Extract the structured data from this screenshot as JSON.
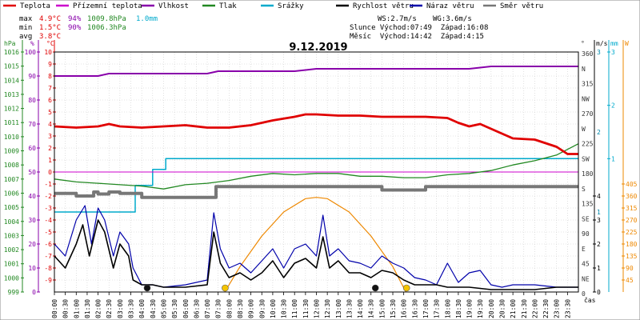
{
  "chart_data": {
    "type": "line",
    "title": "9.12.2019",
    "legend": [
      {
        "label": "Teplota",
        "color": "#e00000"
      },
      {
        "label": "Přízemní teplota",
        "color": "#cc00cc"
      },
      {
        "label": "Vlhkost",
        "color": "#8800aa"
      },
      {
        "label": "Tlak",
        "color": "#228822"
      },
      {
        "label": "Srážky",
        "color": "#00aacc"
      },
      {
        "label": "Rychlost větru",
        "color": "#000000"
      },
      {
        "label": "Náraz větru",
        "color": "#0000aa"
      },
      {
        "label": "Směr větru",
        "color": "#777777"
      }
    ],
    "stats": {
      "max_label": "max",
      "max_temp": "4.9°C",
      "max_hum": "94%",
      "max_press": "1009.8hPa",
      "max_rain": "1.0mm",
      "min_label": "min",
      "min_temp": "1.5°C",
      "min_hum": "90%",
      "min_press": "1006.3hPa",
      "avg_label": "avg",
      "avg_temp": "3.8°C"
    },
    "info": {
      "ws": "WS:2.7m/s",
      "wg": "WG:3.6m/s",
      "sun": "Slunce Východ:07:49  Západ:16:08",
      "moon": "Měsíc  Východ:14:42  Západ:4:15"
    },
    "axis_units": {
      "hpa": "hPa",
      "pct": "%",
      "degc": "°C",
      "deg": "°",
      "ms": "m/s",
      "mm": "mm",
      "w": "W",
      "time": "čas"
    },
    "y_axes": {
      "hpa": {
        "ticks": [
          1016,
          1015,
          1014,
          1013,
          1012,
          1011,
          1010,
          1009,
          1008,
          1007,
          1006,
          1005,
          1004,
          1003,
          1002,
          1001,
          1000,
          999
        ],
        "range": [
          999,
          1016
        ]
      },
      "pct": {
        "ticks": [
          100,
          90,
          80,
          70,
          60,
          50,
          40,
          30,
          20,
          10,
          0
        ],
        "range": [
          0,
          100
        ]
      },
      "temp": {
        "ticks": [
          10,
          9,
          8,
          7,
          6,
          5,
          4,
          3,
          2,
          1,
          0,
          -1,
          -2,
          -3,
          -4,
          -5,
          -6,
          -7,
          -8,
          -9
        ],
        "range": [
          -10,
          10
        ]
      },
      "dir": {
        "ticks": [
          "360",
          "N",
          "315",
          "NW",
          "270",
          "W",
          "225",
          "SW",
          "180",
          "S",
          "135",
          "SE",
          "90",
          "E",
          "45",
          "NE",
          "0"
        ]
      },
      "ms_upper": {
        "ticks": [
          3,
          2,
          1
        ],
        "range": [
          0,
          3
        ]
      },
      "ms_lower": {
        "ticks": [
          4,
          3,
          2,
          1,
          0
        ],
        "range": [
          0,
          4
        ]
      },
      "mm": {
        "ticks": [
          3,
          2,
          1
        ],
        "range": [
          0,
          3
        ]
      },
      "w": {
        "ticks": [
          405,
          360,
          315,
          270,
          225,
          180,
          135,
          90,
          45
        ],
        "range": [
          0,
          405
        ]
      }
    },
    "x_ticks": [
      "00:00",
      "00:30",
      "01:00",
      "01:30",
      "02:00",
      "02:30",
      "03:00",
      "03:30",
      "04:00",
      "04:30",
      "05:00",
      "05:30",
      "06:00",
      "06:30",
      "07:00",
      "07:30",
      "08:00",
      "08:30",
      "09:00",
      "09:30",
      "10:00",
      "10:30",
      "11:00",
      "11:30",
      "12:00",
      "12:30",
      "13:00",
      "13:30",
      "14:00",
      "14:30",
      "15:00",
      "15:30",
      "16:00",
      "16:30",
      "17:00",
      "17:30",
      "18:00",
      "18:30",
      "19:00",
      "19:30",
      "20:00",
      "20:30",
      "21:00",
      "21:30",
      "22:00",
      "22:30",
      "23:00",
      "23:30"
    ],
    "x_range_hours": [
      0,
      24
    ],
    "series": [
      {
        "name": "Teplota",
        "color": "#e00000",
        "axis": "temp",
        "x": [
          0,
          1,
          2,
          2.5,
          3,
          4,
          5,
          6,
          7,
          8,
          9,
          9.5,
          10,
          11,
          11.5,
          12,
          13,
          13.5,
          14,
          15,
          16,
          17,
          18,
          18.5,
          19,
          19.5,
          20,
          21,
          22,
          23,
          23.5,
          24
        ],
        "y": [
          3.8,
          3.7,
          3.8,
          4.0,
          3.8,
          3.7,
          3.8,
          3.9,
          3.7,
          3.7,
          3.9,
          4.1,
          4.3,
          4.6,
          4.8,
          4.8,
          4.7,
          4.7,
          4.7,
          4.6,
          4.6,
          4.6,
          4.5,
          4.1,
          3.8,
          4.0,
          3.6,
          2.8,
          2.7,
          2.1,
          1.5,
          1.5
        ]
      },
      {
        "name": "Přízemní teplota",
        "color": "#cc00cc",
        "axis": "pct",
        "x": [
          0,
          24
        ],
        "y": [
          50,
          50
        ]
      },
      {
        "name": "Vlhkost",
        "color": "#8800aa",
        "axis": "pct",
        "x": [
          0,
          2,
          2.5,
          4,
          5,
          7,
          7.5,
          11,
          12,
          14,
          15,
          17,
          18,
          19,
          20,
          24
        ],
        "y": [
          90,
          90,
          91,
          91,
          91,
          91,
          92,
          92,
          93,
          93,
          93,
          93,
          93,
          93,
          94,
          94
        ]
      },
      {
        "name": "Tlak",
        "color": "#228822",
        "axis": "hpa",
        "x": [
          0,
          1,
          2,
          3,
          4,
          5,
          6,
          7,
          8,
          9,
          10,
          11,
          12,
          13,
          14,
          15,
          16,
          17,
          18,
          19,
          20,
          21,
          22,
          23,
          24
        ],
        "y": [
          1007.0,
          1006.8,
          1006.7,
          1006.6,
          1006.5,
          1006.3,
          1006.6,
          1006.7,
          1006.9,
          1007.2,
          1007.4,
          1007.3,
          1007.4,
          1007.4,
          1007.2,
          1007.2,
          1007.1,
          1007.1,
          1007.3,
          1007.4,
          1007.6,
          1008.0,
          1008.3,
          1008.7,
          1009.5
        ]
      },
      {
        "name": "Srážky",
        "color": "#00aacc",
        "axis": "mm",
        "x": [
          0,
          3.5,
          3.7,
          4.4,
          4.5,
          5.0,
          5.1,
          24
        ],
        "y": [
          0,
          0,
          0.5,
          0.5,
          0.8,
          0.8,
          1.0,
          1.0
        ]
      },
      {
        "name": "Směr větru",
        "color": "#777777",
        "axis": "dir_deg",
        "x": [
          0,
          1,
          1.8,
          2,
          2.5,
          3,
          4,
          6,
          7.3,
          7.4,
          13,
          15,
          17,
          20,
          24
        ],
        "y": [
          148,
          144,
          150,
          147,
          150,
          148,
          142,
          142,
          142,
          158,
          158,
          153,
          158,
          158,
          158
        ]
      },
      {
        "name": "Rychlost větru",
        "color": "#000000",
        "axis": "ms_lower",
        "x": [
          0,
          0.5,
          1,
          1.3,
          1.6,
          2,
          2.3,
          2.7,
          3,
          3.4,
          3.6,
          4,
          4.5,
          5,
          6,
          7,
          7.3,
          7.6,
          8,
          8.5,
          9,
          9.5,
          10,
          10.5,
          11,
          11.5,
          12,
          12.3,
          12.6,
          13,
          13.5,
          14,
          14.5,
          15,
          15.5,
          16,
          16.5,
          17,
          17.5,
          18,
          19,
          20,
          21,
          22,
          23,
          24
        ],
        "y": [
          1.5,
          1.0,
          2.0,
          2.8,
          1.5,
          3.0,
          2.5,
          1.0,
          2.0,
          1.5,
          0.5,
          0.3,
          0.3,
          0.2,
          0.2,
          0.3,
          2.5,
          1.2,
          0.6,
          0.8,
          0.5,
          0.8,
          1.3,
          0.6,
          1.2,
          1.4,
          1.0,
          2.3,
          1.0,
          1.3,
          0.8,
          0.8,
          0.6,
          0.9,
          0.8,
          0.5,
          0.3,
          0.3,
          0.3,
          0.2,
          0.2,
          0.1,
          0.1,
          0.1,
          0.2,
          0.2
        ]
      },
      {
        "name": "Náraz větru",
        "color": "#0000aa",
        "axis": "ms_lower",
        "x": [
          0,
          0.5,
          1,
          1.4,
          1.7,
          2,
          2.3,
          2.7,
          3,
          3.4,
          3.6,
          4,
          4.5,
          5,
          6,
          7,
          7.3,
          7.6,
          8,
          8.5,
          9,
          9.5,
          10,
          10.5,
          11,
          11.5,
          12,
          12.3,
          12.6,
          13,
          13.5,
          14,
          14.5,
          15,
          15.5,
          16,
          16.5,
          17,
          17.5,
          18,
          18.5,
          19,
          19.5,
          20,
          20.5,
          21,
          22,
          23,
          24
        ],
        "y": [
          2.0,
          1.5,
          3.0,
          3.6,
          2.0,
          3.5,
          3.0,
          1.5,
          2.5,
          2.0,
          1.0,
          0.3,
          0.3,
          0.2,
          0.3,
          0.5,
          3.3,
          1.8,
          1.0,
          1.2,
          0.8,
          1.3,
          1.8,
          1.0,
          1.8,
          2.0,
          1.5,
          3.2,
          1.5,
          1.8,
          1.3,
          1.2,
          1.0,
          1.5,
          1.2,
          1.0,
          0.6,
          0.5,
          0.3,
          1.2,
          0.4,
          0.8,
          0.9,
          0.3,
          0.2,
          0.3,
          0.3,
          0.2,
          0.2
        ]
      },
      {
        "name": "Sluneční záření",
        "color": "#ee8800",
        "axis": "w",
        "x": [
          7.8,
          8.5,
          9.5,
          10.5,
          11.5,
          12.0,
          12.5,
          13.5,
          14.5,
          15.5,
          16.1
        ],
        "y": [
          0,
          95,
          210,
          300,
          350,
          355,
          350,
          300,
          210,
          95,
          0
        ]
      }
    ],
    "markers": [
      {
        "label": "sunrise",
        "x": 7.82,
        "color": "#f5c400"
      },
      {
        "label": "sunset",
        "x": 16.13,
        "color": "#f5c400"
      },
      {
        "label": "moonset",
        "x": 4.25,
        "color": "#111111"
      },
      {
        "label": "moonrise",
        "x": 14.7,
        "color": "#111111"
      }
    ]
  }
}
